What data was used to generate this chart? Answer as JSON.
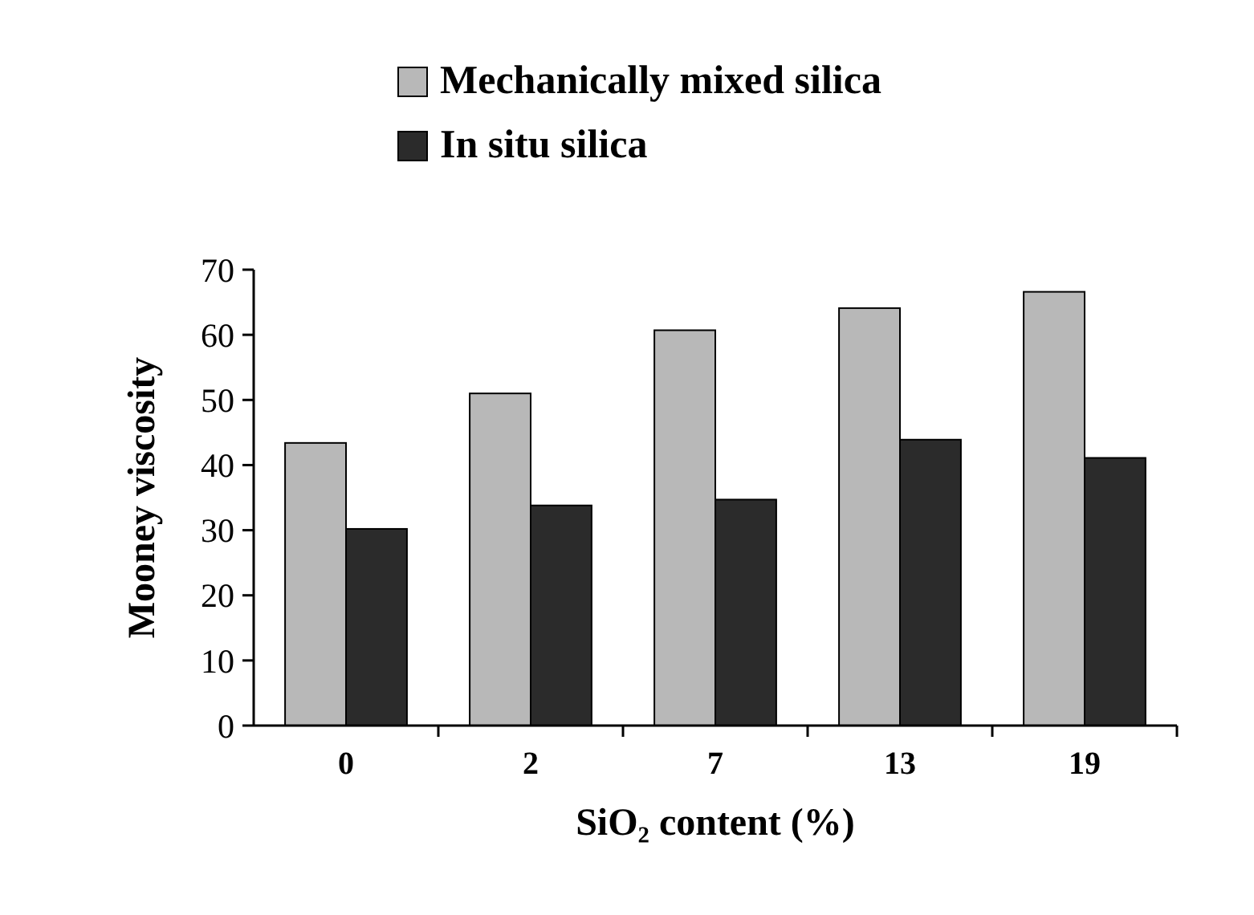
{
  "chart_data": {
    "type": "bar",
    "xlabel": "SiO₂ content (%)",
    "ylabel": "Mooney viscosity",
    "categories": [
      "0",
      "2",
      "7",
      "13",
      "19"
    ],
    "series": [
      {
        "name": "Mechanically mixed silica",
        "color": "#b8b8b8",
        "values": [
          43.4,
          51,
          60.7,
          64.1,
          66.6
        ]
      },
      {
        "name": "In situ silica",
        "color": "#2b2b2b",
        "values": [
          30.2,
          33.8,
          34.7,
          43.9,
          41.1
        ]
      }
    ],
    "ylim": [
      0,
      70
    ],
    "yticks": [
      0,
      10,
      20,
      30,
      40,
      50,
      60,
      70
    ],
    "grid": false,
    "legend": "top"
  }
}
